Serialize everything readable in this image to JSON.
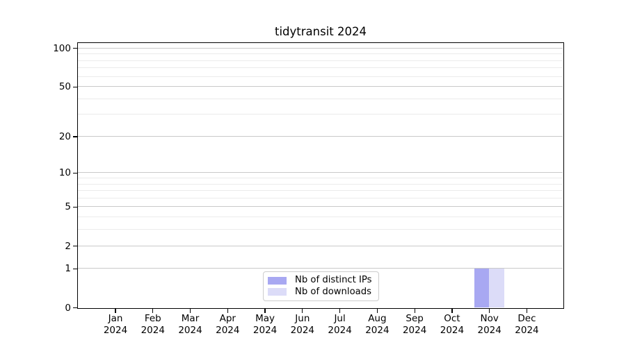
{
  "chart_data": {
    "type": "bar",
    "title": "tidytransit 2024",
    "categories": [
      "Jan",
      "Feb",
      "Mar",
      "Apr",
      "May",
      "Jun",
      "Jul",
      "Aug",
      "Sep",
      "Oct",
      "Nov",
      "Dec"
    ],
    "year": "2024",
    "series": [
      {
        "name": "Nb of distinct IPs",
        "color": "#a8a8f2",
        "values": [
          0,
          0,
          0,
          0,
          0,
          0,
          0,
          0,
          0,
          0,
          1,
          0
        ]
      },
      {
        "name": "Nb of downloads",
        "color": "#dcdcf8",
        "values": [
          0,
          0,
          0,
          0,
          0,
          0,
          0,
          0,
          0,
          0,
          1,
          0
        ]
      }
    ],
    "yscale": "log1p",
    "ylim": [
      0,
      109.6
    ],
    "yticks": [
      0,
      1,
      2,
      5,
      10,
      20,
      50,
      100
    ],
    "yticks_minor": [
      3,
      4,
      6,
      7,
      8,
      9,
      30,
      40,
      60,
      70,
      80,
      90
    ],
    "xlabel": "",
    "ylabel": "",
    "grid": "horizontal",
    "legend_position": "lower center"
  }
}
